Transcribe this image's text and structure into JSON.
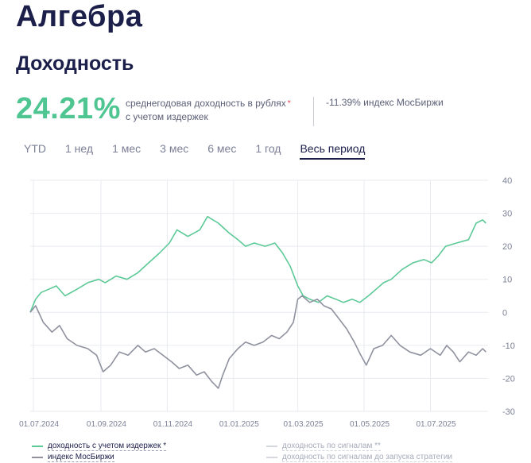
{
  "page": {
    "title": "Алгебра",
    "subtitle": "Доходность"
  },
  "summary": {
    "annual_yield": "24.21%",
    "annual_yield_desc_line1": "среднегодовая доходность в рублях",
    "annual_yield_desc_line2": "с учетом издержек",
    "asterisk": "*",
    "index_stat": "-11.39% индекс МосБиржи"
  },
  "tabs": [
    {
      "label": "YTD",
      "active": false
    },
    {
      "label": "1 нед",
      "active": false
    },
    {
      "label": "1 мес",
      "active": false
    },
    {
      "label": "3 мес",
      "active": false
    },
    {
      "label": "6 мес",
      "active": false
    },
    {
      "label": "1 год",
      "active": false
    },
    {
      "label": "Весь период",
      "active": true
    }
  ],
  "legend": {
    "strategy": "доходность с учетом издержек *",
    "index": "индекс МосБиржи",
    "signals": "доходность по сигналам **",
    "signals_before": "доходность по сигналам до запуска стратегии"
  },
  "colors": {
    "strategy": "#5cc997",
    "index": "#8f919f",
    "grid": "#e8eaef",
    "axis_text": "#7b8096"
  },
  "chart_data": {
    "type": "line",
    "ylim": [
      -30,
      40
    ],
    "yticks": [
      "40",
      "30",
      "20",
      "10",
      "0",
      "-10",
      "-20",
      "-30"
    ],
    "xlim": [
      "2024-06-28",
      "2025-08-23"
    ],
    "xticks": [
      {
        "date": "2024-07-01",
        "label": "01.07.2024"
      },
      {
        "date": "2024-09-01",
        "label": "01.09.2024"
      },
      {
        "date": "2024-11-01",
        "label": "01.11.2024"
      },
      {
        "date": "2025-01-01",
        "label": "01.01.2025"
      },
      {
        "date": "2025-03-01",
        "label": "01.03.2025"
      },
      {
        "date": "2025-05-01",
        "label": "01.05.2025"
      },
      {
        "date": "2025-07-01",
        "label": "01.07.2025"
      }
    ],
    "series": [
      {
        "name": "доходность с учетом издержек *",
        "key": "strategy",
        "points": [
          [
            "2024-06-28",
            0
          ],
          [
            "2024-07-03",
            4
          ],
          [
            "2024-07-08",
            6
          ],
          [
            "2024-07-15",
            7
          ],
          [
            "2024-07-22",
            8
          ],
          [
            "2024-07-30",
            5
          ],
          [
            "2024-08-10",
            7
          ],
          [
            "2024-08-20",
            9
          ],
          [
            "2024-08-30",
            10
          ],
          [
            "2024-09-05",
            9
          ],
          [
            "2024-09-15",
            11
          ],
          [
            "2024-09-25",
            10
          ],
          [
            "2024-10-05",
            12
          ],
          [
            "2024-10-15",
            15
          ],
          [
            "2024-10-25",
            18
          ],
          [
            "2024-11-03",
            21
          ],
          [
            "2024-11-10",
            25
          ],
          [
            "2024-11-20",
            23
          ],
          [
            "2024-12-01",
            25
          ],
          [
            "2024-12-08",
            29
          ],
          [
            "2024-12-18",
            27
          ],
          [
            "2024-12-28",
            24
          ],
          [
            "2025-01-05",
            22
          ],
          [
            "2025-01-12",
            20
          ],
          [
            "2025-01-20",
            21
          ],
          [
            "2025-01-30",
            20
          ],
          [
            "2025-02-08",
            21
          ],
          [
            "2025-02-15",
            18
          ],
          [
            "2025-02-22",
            14
          ],
          [
            "2025-03-01",
            8
          ],
          [
            "2025-03-06",
            5
          ],
          [
            "2025-03-12",
            4
          ],
          [
            "2025-03-20",
            3
          ],
          [
            "2025-03-28",
            5
          ],
          [
            "2025-04-05",
            4
          ],
          [
            "2025-04-12",
            3
          ],
          [
            "2025-04-20",
            4
          ],
          [
            "2025-04-27",
            3
          ],
          [
            "2025-05-05",
            5
          ],
          [
            "2025-05-12",
            7
          ],
          [
            "2025-05-19",
            9
          ],
          [
            "2025-05-26",
            10
          ],
          [
            "2025-06-05",
            13
          ],
          [
            "2025-06-15",
            15
          ],
          [
            "2025-06-25",
            16
          ],
          [
            "2025-07-02",
            15
          ],
          [
            "2025-07-08",
            17
          ],
          [
            "2025-07-15",
            20
          ],
          [
            "2025-07-25",
            21
          ],
          [
            "2025-08-05",
            22
          ],
          [
            "2025-08-12",
            27
          ],
          [
            "2025-08-18",
            28
          ],
          [
            "2025-08-21",
            27
          ]
        ]
      },
      {
        "name": "индекс МосБиржи",
        "key": "index",
        "points": [
          [
            "2024-06-28",
            0
          ],
          [
            "2024-07-03",
            2
          ],
          [
            "2024-07-10",
            -3
          ],
          [
            "2024-07-18",
            -6
          ],
          [
            "2024-07-25",
            -4
          ],
          [
            "2024-08-01",
            -8
          ],
          [
            "2024-08-10",
            -10
          ],
          [
            "2024-08-20",
            -11
          ],
          [
            "2024-08-28",
            -13
          ],
          [
            "2024-09-03",
            -18
          ],
          [
            "2024-09-10",
            -16
          ],
          [
            "2024-09-18",
            -12
          ],
          [
            "2024-09-26",
            -13
          ],
          [
            "2024-10-05",
            -10
          ],
          [
            "2024-10-12",
            -12
          ],
          [
            "2024-10-20",
            -11
          ],
          [
            "2024-10-28",
            -13
          ],
          [
            "2024-11-05",
            -15
          ],
          [
            "2024-11-12",
            -17
          ],
          [
            "2024-11-20",
            -16
          ],
          [
            "2024-11-28",
            -19
          ],
          [
            "2024-12-05",
            -18
          ],
          [
            "2024-12-12",
            -21
          ],
          [
            "2024-12-18",
            -23
          ],
          [
            "2024-12-22",
            -19
          ],
          [
            "2024-12-28",
            -14
          ],
          [
            "2025-01-05",
            -11
          ],
          [
            "2025-01-12",
            -9
          ],
          [
            "2025-01-20",
            -10
          ],
          [
            "2025-01-28",
            -9
          ],
          [
            "2025-02-05",
            -7
          ],
          [
            "2025-02-12",
            -8
          ],
          [
            "2025-02-19",
            -6
          ],
          [
            "2025-02-25",
            -3
          ],
          [
            "2025-03-01",
            4
          ],
          [
            "2025-03-05",
            5
          ],
          [
            "2025-03-12",
            3
          ],
          [
            "2025-03-19",
            4
          ],
          [
            "2025-03-25",
            2
          ],
          [
            "2025-04-01",
            1
          ],
          [
            "2025-04-08",
            -2
          ],
          [
            "2025-04-15",
            -5
          ],
          [
            "2025-04-22",
            -9
          ],
          [
            "2025-04-28",
            -13
          ],
          [
            "2025-05-03",
            -16
          ],
          [
            "2025-05-10",
            -11
          ],
          [
            "2025-05-18",
            -10
          ],
          [
            "2025-05-26",
            -7
          ],
          [
            "2025-06-03",
            -10
          ],
          [
            "2025-06-12",
            -12
          ],
          [
            "2025-06-22",
            -13
          ],
          [
            "2025-07-01",
            -11
          ],
          [
            "2025-07-10",
            -13
          ],
          [
            "2025-07-16",
            -10
          ],
          [
            "2025-07-22",
            -12
          ],
          [
            "2025-07-28",
            -15
          ],
          [
            "2025-08-05",
            -12
          ],
          [
            "2025-08-12",
            -13
          ],
          [
            "2025-08-18",
            -11
          ],
          [
            "2025-08-21",
            -12
          ]
        ]
      }
    ]
  }
}
